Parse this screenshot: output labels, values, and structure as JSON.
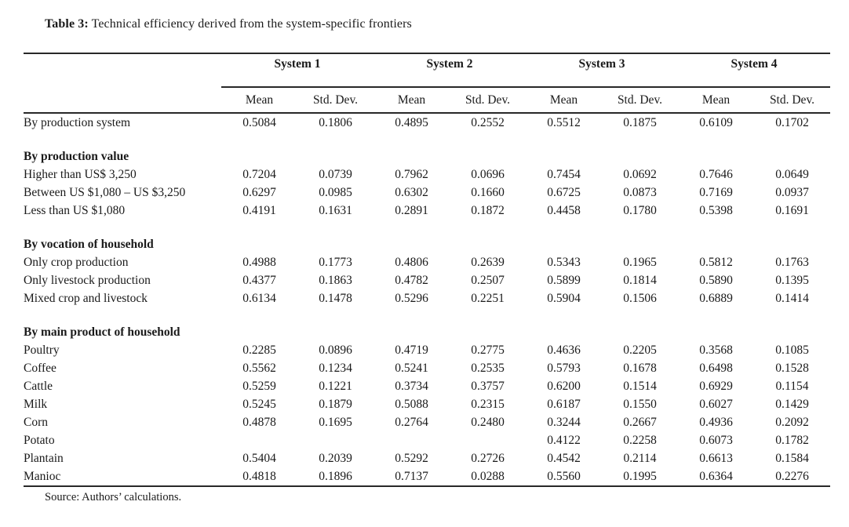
{
  "title": {
    "label": "Table 3:",
    "text": " Technical efficiency derived from the system-specific frontiers"
  },
  "table": {
    "group_headers": [
      "System 1",
      "System 2",
      "System 3",
      "System 4"
    ],
    "sub_headers": [
      "Mean",
      "Std. Dev."
    ],
    "rows": [
      {
        "type": "data",
        "label": "By production system",
        "values": [
          "0.5084",
          "0.1806",
          "0.4895",
          "0.2552",
          "0.5512",
          "0.1875",
          "0.6109",
          "0.1702"
        ]
      },
      {
        "type": "spacer"
      },
      {
        "type": "section",
        "label": "By production value"
      },
      {
        "type": "data",
        "label": "Higher than US$ 3,250",
        "values": [
          "0.7204",
          "0.0739",
          "0.7962",
          "0.0696",
          "0.7454",
          "0.0692",
          "0.7646",
          "0.0649"
        ]
      },
      {
        "type": "data",
        "label": "Between US $1,080 – US $3,250",
        "values": [
          "0.6297",
          "0.0985",
          "0.6302",
          "0.1660",
          "0.6725",
          "0.0873",
          "0.7169",
          "0.0937"
        ]
      },
      {
        "type": "data",
        "label": "Less than US $1,080",
        "values": [
          "0.4191",
          "0.1631",
          "0.2891",
          "0.1872",
          "0.4458",
          "0.1780",
          "0.5398",
          "0.1691"
        ]
      },
      {
        "type": "spacer"
      },
      {
        "type": "section",
        "label": "By vocation of household"
      },
      {
        "type": "data",
        "label": "Only crop production",
        "values": [
          "0.4988",
          "0.1773",
          "0.4806",
          "0.2639",
          "0.5343",
          "0.1965",
          "0.5812",
          "0.1763"
        ]
      },
      {
        "type": "data",
        "label": "Only livestock production",
        "values": [
          "0.4377",
          "0.1863",
          "0.4782",
          "0.2507",
          "0.5899",
          "0.1814",
          "0.5890",
          "0.1395"
        ]
      },
      {
        "type": "data",
        "label": "Mixed crop and livestock",
        "values": [
          "0.6134",
          "0.1478",
          "0.5296",
          "0.2251",
          "0.5904",
          "0.1506",
          "0.6889",
          "0.1414"
        ]
      },
      {
        "type": "spacer"
      },
      {
        "type": "section",
        "label": "By main product of household"
      },
      {
        "type": "data",
        "label": "Poultry",
        "values": [
          "0.2285",
          "0.0896",
          "0.4719",
          "0.2775",
          "0.4636",
          "0.2205",
          "0.3568",
          "0.1085"
        ]
      },
      {
        "type": "data",
        "label": "Coffee",
        "values": [
          "0.5562",
          "0.1234",
          "0.5241",
          "0.2535",
          "0.5793",
          "0.1678",
          "0.6498",
          "0.1528"
        ]
      },
      {
        "type": "data",
        "label": "Cattle",
        "values": [
          "0.5259",
          "0.1221",
          "0.3734",
          "0.3757",
          "0.6200",
          "0.1514",
          "0.6929",
          "0.1154"
        ]
      },
      {
        "type": "data",
        "label": "Milk",
        "values": [
          "0.5245",
          "0.1879",
          "0.5088",
          "0.2315",
          "0.6187",
          "0.1550",
          "0.6027",
          "0.1429"
        ]
      },
      {
        "type": "data",
        "label": "Corn",
        "values": [
          "0.4878",
          "0.1695",
          "0.2764",
          "0.2480",
          "0.3244",
          "0.2667",
          "0.4936",
          "0.2092"
        ]
      },
      {
        "type": "data",
        "label": "Potato",
        "values": [
          "",
          "",
          "",
          "",
          "0.4122",
          "0.2258",
          "0.6073",
          "0.1782"
        ]
      },
      {
        "type": "data",
        "label": "Plantain",
        "values": [
          "0.5404",
          "0.2039",
          "0.5292",
          "0.2726",
          "0.4542",
          "0.2114",
          "0.6613",
          "0.1584"
        ]
      },
      {
        "type": "data",
        "label": "Manioc",
        "values": [
          "0.4818",
          "0.1896",
          "0.7137",
          "0.0288",
          "0.5560",
          "0.1995",
          "0.6364",
          "0.2276"
        ]
      }
    ]
  },
  "source": "Source: Authors’ calculations."
}
